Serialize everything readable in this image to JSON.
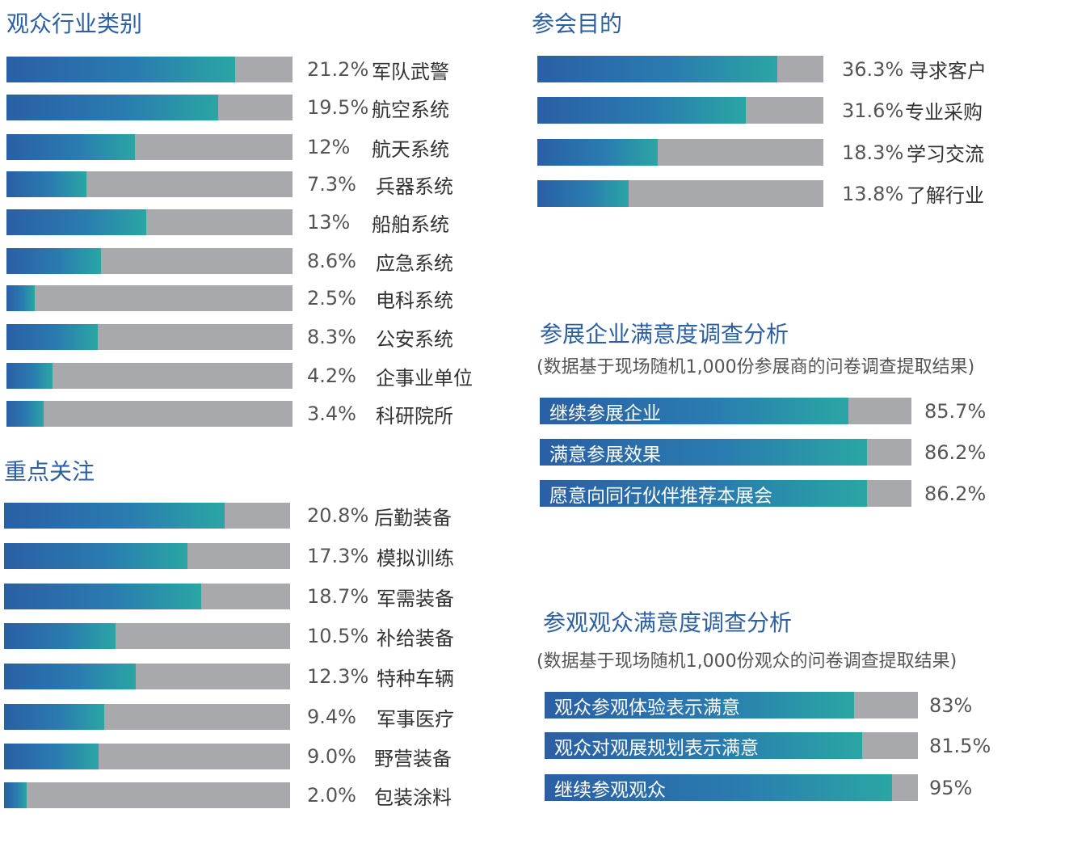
{
  "chart_data": [
    {
      "type": "bar",
      "orientation": "horizontal",
      "title": "观众行业类别",
      "categories": [
        "军队武警",
        "航空系统",
        "航天系统",
        "兵器系统",
        "船舶系统",
        "应急系统",
        "电科系统",
        "公安系统",
        "企事业单位",
        "科研院所"
      ],
      "labels": [
        "21.2%",
        "19.5%",
        "12%",
        "7.3%",
        "13%",
        "8.6%",
        "2.5%",
        "8.3%",
        "4.2%",
        "3.4%"
      ],
      "values": [
        21.2,
        19.5,
        12,
        7.3,
        13,
        8.6,
        2.5,
        8.3,
        4.2,
        3.4
      ],
      "fill_fractions": [
        0.8,
        0.74,
        0.45,
        0.28,
        0.49,
        0.33,
        0.1,
        0.32,
        0.16,
        0.13
      ]
    },
    {
      "type": "bar",
      "orientation": "horizontal",
      "title": "重点关注",
      "categories": [
        "后勤装备",
        "模拟训练",
        "军需装备",
        "补给装备",
        "特种车辆",
        "军事医疗",
        "野营装备",
        "包装涂料"
      ],
      "labels": [
        "20.8%",
        "17.3%",
        "18.7%",
        "10.5%",
        "12.3%",
        "9.4%",
        "9.0%",
        "2.0%"
      ],
      "values": [
        20.8,
        17.3,
        18.7,
        10.5,
        12.3,
        9.4,
        9.0,
        2.0
      ],
      "fill_fractions": [
        0.77,
        0.64,
        0.69,
        0.39,
        0.46,
        0.35,
        0.33,
        0.08
      ]
    },
    {
      "type": "bar",
      "orientation": "horizontal",
      "title": "参会目的",
      "categories": [
        "寻求客户",
        "专业采购",
        "学习交流",
        "了解行业"
      ],
      "labels": [
        "36.3%",
        "31.6%",
        "18.3%",
        "13.8%"
      ],
      "values": [
        36.3,
        31.6,
        18.3,
        13.8
      ],
      "fill_fractions": [
        0.84,
        0.73,
        0.42,
        0.32
      ]
    },
    {
      "type": "bar",
      "orientation": "horizontal",
      "title": "参展企业满意度调查分析",
      "subtitle": "(数据基于现场随机1,000份参展商的问卷调查提取结果)",
      "categories": [
        "继续参展企业",
        "满意参展效果",
        "愿意向同行伙伴推荐本展会"
      ],
      "labels": [
        "85.7%",
        "86.2%",
        "86.2%"
      ],
      "values": [
        85.7,
        86.2,
        86.2
      ],
      "fill_fractions": [
        0.83,
        0.88,
        0.88
      ]
    },
    {
      "type": "bar",
      "orientation": "horizontal",
      "title": "参观观众满意度调查分析",
      "subtitle": "(数据基于现场随机1,000份观众的问卷调查提取结果)",
      "categories": [
        "观众参观体验表示满意",
        "观众对观展规划表示满意",
        "继续参观观众"
      ],
      "labels": [
        "83%",
        "81.5%",
        "95%"
      ],
      "values": [
        83,
        81.5,
        95
      ],
      "fill_fractions": [
        0.83,
        0.85,
        0.93
      ]
    }
  ]
}
